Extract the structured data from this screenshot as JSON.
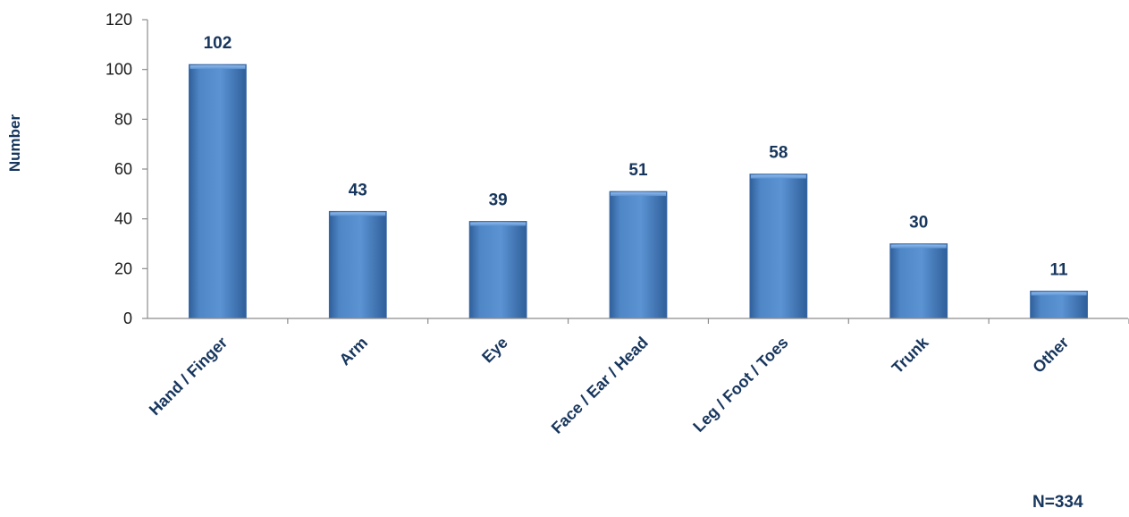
{
  "chart_data": {
    "type": "bar",
    "categories": [
      "Hand / Finger",
      "Arm",
      "Eye",
      "Face / Ear / Head",
      "Leg / Foot / Toes",
      "Trunk",
      "Other"
    ],
    "values": [
      102,
      43,
      39,
      51,
      58,
      30,
      11
    ],
    "ylabel": "Number",
    "xlabel": "",
    "ylim": [
      0,
      120
    ],
    "yticks": [
      0,
      20,
      40,
      60,
      80,
      100,
      120
    ],
    "grid": false,
    "legend": "none",
    "data_labels": [
      "102",
      "43",
      "39",
      "51",
      "58",
      "30",
      "11"
    ],
    "annotation": "N=334",
    "colors": {
      "bar": "#4a7ebb",
      "bar_light": "#7aa7de",
      "bar_dark": "#2f5f9a",
      "label": "#17365d",
      "axis": "#8c8c8c"
    }
  }
}
